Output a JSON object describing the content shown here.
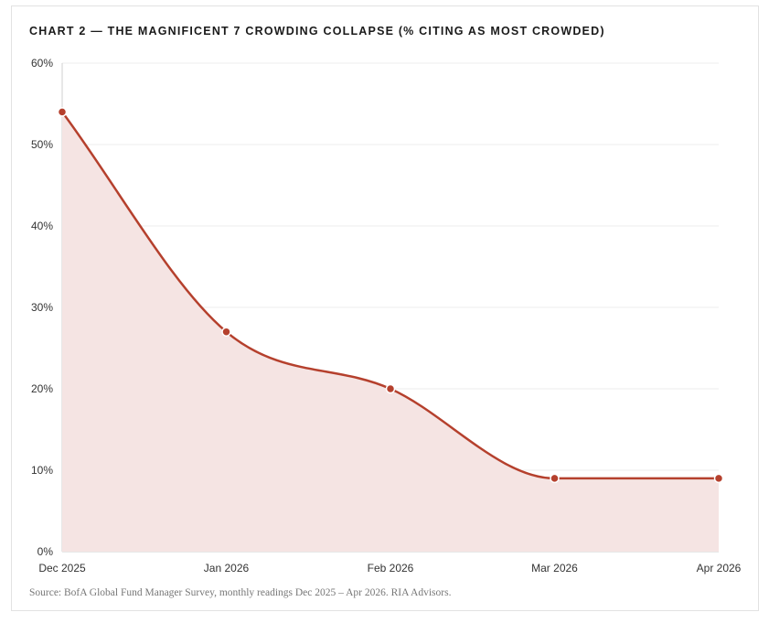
{
  "title": "CHART 2 — THE MAGNIFICENT 7 CROWDING COLLAPSE (% CITING AS MOST CROWDED)",
  "source": "Source: BofA Global Fund Manager Survey, monthly readings Dec 2025 – Apr 2026. RIA Advisors.",
  "chart_data": {
    "type": "area",
    "categories": [
      "Dec 2025",
      "Jan 2026",
      "Feb 2026",
      "Mar 2026",
      "Apr 2026"
    ],
    "series": [
      {
        "values": [
          54,
          27,
          20,
          9,
          9
        ]
      }
    ],
    "ylim": [
      0,
      60
    ],
    "yticks": [
      "0%",
      "10%",
      "20%",
      "30%",
      "40%",
      "50%",
      "60%"
    ],
    "ytick_values": [
      0,
      10,
      20,
      30,
      40,
      50,
      60
    ],
    "grid": true,
    "colors": {
      "line": "#b5402d",
      "fill": "#f5e4e3",
      "grid": "#ececec",
      "axis": "#cfcfcf"
    }
  }
}
